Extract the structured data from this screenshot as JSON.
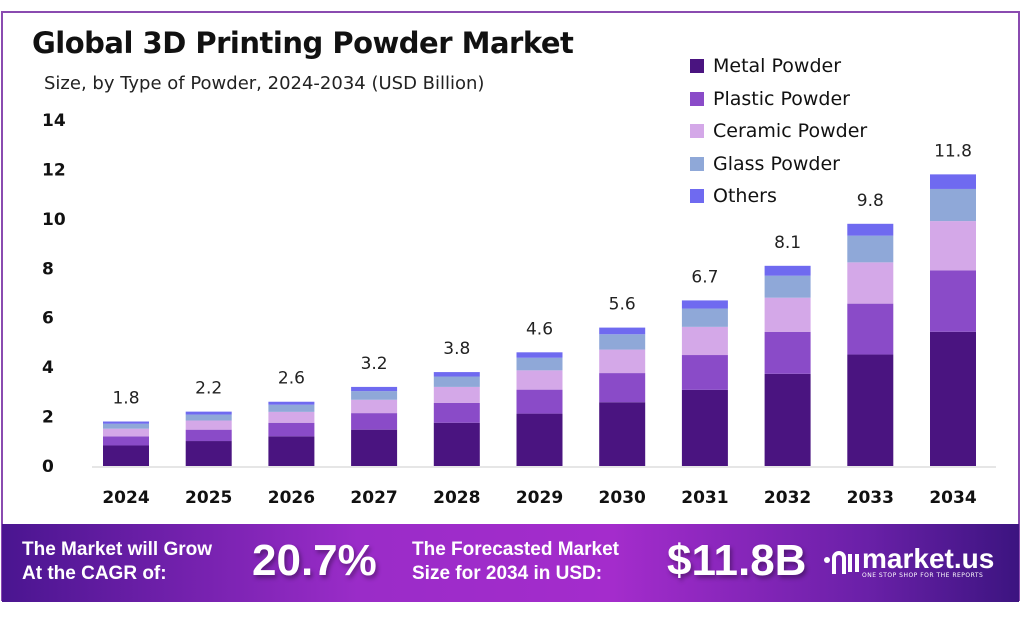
{
  "chart_data": {
    "type": "bar",
    "stacked": true,
    "title": "Global 3D Printing Powder Market",
    "subtitle": "Size, by Type of Powder, 2024-2034 (USD Billion)",
    "categories": [
      "2024",
      "2025",
      "2026",
      "2027",
      "2028",
      "2029",
      "2030",
      "2031",
      "2032",
      "2033",
      "2034"
    ],
    "totals": [
      "1.8",
      "2.2",
      "2.6",
      "3.2",
      "3.8",
      "4.6",
      "5.6",
      "6.7",
      "8.1",
      "9.8",
      "11.8"
    ],
    "series": [
      {
        "name": "Metal Powder",
        "color": "#4a1480",
        "values": [
          0.83,
          1.01,
          1.2,
          1.47,
          1.75,
          2.12,
          2.58,
          3.08,
          3.73,
          4.51,
          5.43
        ]
      },
      {
        "name": "Plastic Powder",
        "color": "#8a4bc8",
        "values": [
          0.37,
          0.46,
          0.55,
          0.67,
          0.8,
          0.97,
          1.18,
          1.41,
          1.7,
          2.06,
          2.48
        ]
      },
      {
        "name": "Ceramic Powder",
        "color": "#d4a8e8",
        "values": [
          0.31,
          0.37,
          0.44,
          0.54,
          0.65,
          0.78,
          0.95,
          1.14,
          1.38,
          1.67,
          2.0
        ]
      },
      {
        "name": "Glass Powder",
        "color": "#8fa8d8",
        "values": [
          0.2,
          0.24,
          0.29,
          0.35,
          0.42,
          0.51,
          0.62,
          0.74,
          0.89,
          1.08,
          1.3
        ]
      },
      {
        "name": "Others",
        "color": "#6f6af0",
        "values": [
          0.09,
          0.12,
          0.12,
          0.17,
          0.18,
          0.22,
          0.27,
          0.33,
          0.4,
          0.48,
          0.59
        ]
      }
    ],
    "ylim": [
      0,
      14
    ],
    "yticks": [
      "0",
      "2",
      "4",
      "6",
      "8",
      "10",
      "12",
      "14"
    ],
    "grid": false,
    "legend": "top-right"
  },
  "footer": {
    "cagr_label_1": "The Market will Grow",
    "cagr_label_2": "At the CAGR of:",
    "cagr_value": "20.7%",
    "forecast_label_1": "The Forecasted Market",
    "forecast_label_2": "Size for 2034 in USD:",
    "forecast_value": "$11.8B",
    "brand": "market.us",
    "tagline": "ONE STOP SHOP FOR THE REPORTS"
  }
}
